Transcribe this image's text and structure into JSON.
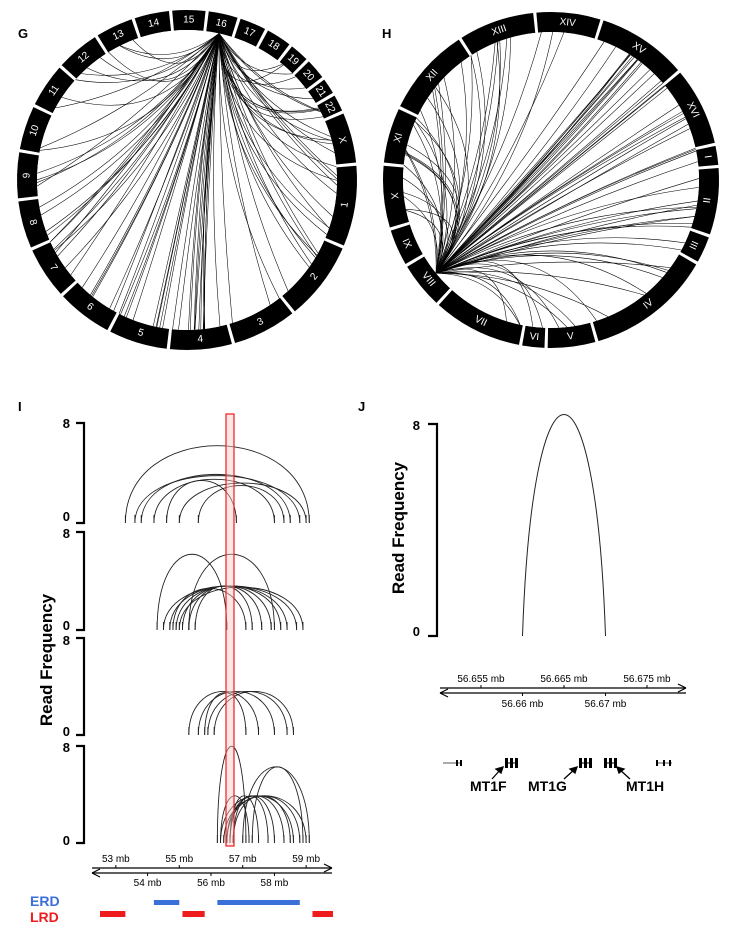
{
  "panels": {
    "G": {
      "letter": "G",
      "segments": [
        "15",
        "16",
        "17",
        "18",
        "19",
        "20",
        "21",
        "22",
        "X",
        "1",
        "2",
        "3",
        "4",
        "5",
        "6",
        "7",
        "8",
        "9",
        "10",
        "11",
        "12",
        "13",
        "14"
      ]
    },
    "H": {
      "letter": "H",
      "segments": [
        "XIV",
        "XV",
        "XVI",
        "I",
        "II",
        "III",
        "IV",
        "V",
        "VI",
        "VII",
        "VIII",
        "IX",
        "X",
        "XI",
        "XII",
        "XIII"
      ]
    },
    "I": {
      "letter": "I",
      "ylabel": "Read Frequency",
      "y_top": "8",
      "y_bottom": "0",
      "axis_top_ticks": [
        "53 mb",
        "55 mb",
        "57 mb",
        "59 mb"
      ],
      "axis_bottom_ticks": [
        "54 mb",
        "56 mb",
        "58 mb"
      ],
      "legend": {
        "erd": {
          "label": "ERD",
          "color": "#3a6fd8"
        },
        "lrd": {
          "label": "LRD",
          "color": "#ee1c1c"
        }
      }
    },
    "J": {
      "letter": "J",
      "ylabel": "Read Frequency",
      "y_top": "8",
      "y_bottom": "0",
      "axis_top_ticks": [
        "56.655 mb",
        "56.665 mb",
        "56.675 mb"
      ],
      "axis_bottom_ticks": [
        "56.66 mb",
        "56.67 mb"
      ],
      "genes": [
        "MT1F",
        "MT1G",
        "MT1H"
      ]
    }
  },
  "chart_data": [
    {
      "type": "chord",
      "panel": "G",
      "segments": [
        "1",
        "2",
        "3",
        "4",
        "5",
        "6",
        "7",
        "8",
        "9",
        "10",
        "11",
        "12",
        "13",
        "14",
        "15",
        "16",
        "17",
        "18",
        "19",
        "20",
        "21",
        "22",
        "X"
      ],
      "hub": "16"
    },
    {
      "type": "chord",
      "panel": "H",
      "segments": [
        "I",
        "II",
        "III",
        "IV",
        "V",
        "VI",
        "VII",
        "VIII",
        "IX",
        "X",
        "XI",
        "XII",
        "XIII",
        "XIV",
        "XV",
        "XVI"
      ],
      "hub": "VIII"
    },
    {
      "type": "arc",
      "panel": "I",
      "xlim": [
        52.5,
        59.5
      ],
      "ylim": [
        0,
        8
      ],
      "highlight_x": [
        56.7,
        56.8
      ],
      "tracks": [
        {
          "arcs": [
            [
              53.3,
              59.1,
              6.2
            ],
            [
              53.6,
              58.8,
              3.8
            ],
            [
              53.8,
              58.5,
              3.9
            ],
            [
              54.2,
              58.0,
              3.5
            ],
            [
              55.0,
              59.0,
              3.2
            ],
            [
              55.6,
              58.3,
              3.0
            ],
            [
              54.6,
              56.8,
              3.4
            ]
          ]
        },
        {
          "arcs": [
            [
              54.3,
              56.5,
              6.2
            ],
            [
              55.3,
              58.0,
              6.2
            ],
            [
              54.5,
              58.7,
              3.6
            ],
            [
              54.7,
              58.4,
              3.6
            ],
            [
              54.9,
              58.2,
              3.6
            ],
            [
              55.1,
              57.9,
              3.6
            ],
            [
              55.3,
              57.6,
              3.6
            ],
            [
              55.5,
              57.3,
              3.6
            ],
            [
              55.0,
              58.9,
              3.5
            ],
            [
              54.8,
              57.1,
              3.4
            ]
          ]
        },
        {
          "arcs": [
            [
              55.3,
              57.5,
              3.6
            ],
            [
              55.6,
              58.0,
              3.6
            ],
            [
              55.9,
              58.4,
              3.6
            ],
            [
              56.1,
              58.6,
              3.6
            ],
            [
              55.8,
              57.1,
              3.5
            ]
          ]
        },
        {
          "arcs": [
            [
              56.2,
              57.1,
              8.0
            ],
            [
              57.0,
              59.1,
              6.3
            ],
            [
              57.3,
              58.9,
              6.3
            ],
            [
              56.3,
              58.6,
              3.9
            ],
            [
              56.5,
              58.3,
              3.9
            ],
            [
              56.6,
              58.0,
              3.9
            ],
            [
              56.7,
              57.8,
              3.9
            ],
            [
              56.4,
              59.0,
              3.9
            ],
            [
              56.5,
              58.8,
              3.9
            ],
            [
              56.6,
              57.5,
              3.9
            ],
            [
              56.3,
              57.2,
              3.9
            ],
            [
              56.7,
              58.5,
              3.9
            ]
          ]
        }
      ],
      "erd": [
        [
          54.2,
          55.0
        ],
        [
          56.2,
          58.8
        ]
      ],
      "lrd": [
        [
          52.5,
          53.3
        ],
        [
          55.1,
          55.8
        ],
        [
          59.2,
          60.0
        ]
      ]
    },
    {
      "type": "arc",
      "panel": "J",
      "xlim": [
        56.65,
        56.68
      ],
      "ylim": [
        0,
        8
      ],
      "arcs": [
        [
          56.66,
          56.67,
          8.0
        ]
      ],
      "genes": [
        {
          "name": "MT1F",
          "pos": 56.662
        },
        {
          "name": "MT1G",
          "pos": 56.6697
        },
        {
          "name": "MT1H",
          "pos": 56.6726
        }
      ]
    }
  ]
}
